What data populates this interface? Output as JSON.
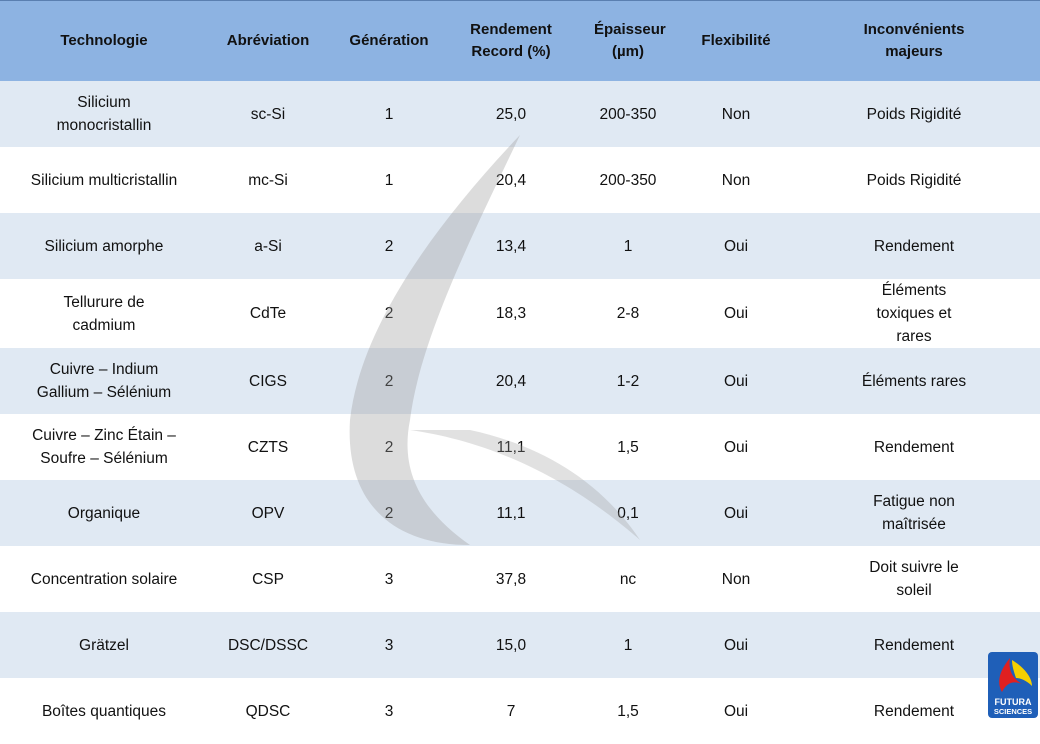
{
  "headers": [
    "Technologie",
    "Abréviation",
    "Génération",
    "Rendement Record (%)",
    "Épaisseur (µm)",
    "Flexibilité",
    "Inconvénients majeurs"
  ],
  "rows": [
    {
      "tech": "Silicium monocristallin",
      "abbr": "sc-Si",
      "gen": "1",
      "yield": "25,0",
      "thick": "200-350",
      "flex": "Non",
      "cons": "Poids Rigidité"
    },
    {
      "tech": "Silicium multicristallin",
      "abbr": "mc-Si",
      "gen": "1",
      "yield": "20,4",
      "thick": "200-350",
      "flex": "Non",
      "cons": "Poids Rigidité"
    },
    {
      "tech": "Silicium amorphe",
      "abbr": "a-Si",
      "gen": "2",
      "yield": "13,4",
      "thick": "1",
      "flex": "Oui",
      "cons": "Rendement"
    },
    {
      "tech": "Tellurure de cadmium",
      "abbr": "CdTe",
      "gen": "2",
      "yield": "18,3",
      "thick": "2-8",
      "flex": "Oui",
      "cons": "Éléments toxiques et rares"
    },
    {
      "tech": "Cuivre – Indium Gallium – Sélénium",
      "abbr": "CIGS",
      "gen": "2",
      "yield": "20,4",
      "thick": "1-2",
      "flex": "Oui",
      "cons": "Éléments rares"
    },
    {
      "tech": "Cuivre – Zinc Étain – Soufre – Sélénium",
      "abbr": "CZTS",
      "gen": "2",
      "yield": "11,1",
      "thick": "1,5",
      "flex": "Oui",
      "cons": "Rendement"
    },
    {
      "tech": "Organique",
      "abbr": "OPV",
      "gen": "2",
      "yield": "11,1",
      "thick": "0,1",
      "flex": "Oui",
      "cons": "Fatigue non maîtrisée"
    },
    {
      "tech": "Concentration solaire",
      "abbr": "CSP",
      "gen": "3",
      "yield": "37,8",
      "thick": "nc",
      "flex": "Non",
      "cons": "Doit suivre le soleil"
    },
    {
      "tech": "Grätzel",
      "abbr": "DSC/DSSC",
      "gen": "3",
      "yield": "15,0",
      "thick": "1",
      "flex": "Oui",
      "cons": "Rendement"
    },
    {
      "tech": "Boîtes quantiques",
      "abbr": "QDSC",
      "gen": "3",
      "yield": "7",
      "thick": "1,5",
      "flex": "Oui",
      "cons": "Rendement"
    }
  ],
  "logo": {
    "line1": "FUTURA",
    "line2": "SCIENCES"
  }
}
